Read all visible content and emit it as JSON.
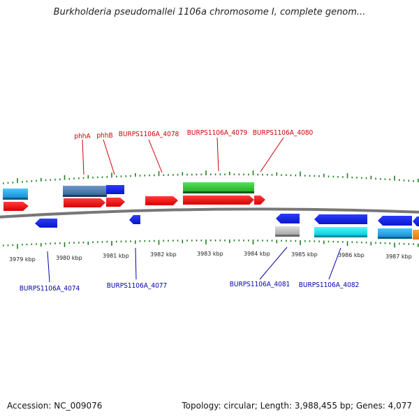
{
  "title": "Burkholderia pseudomallei 1106a chromosome I, complete genom...",
  "footer": {
    "accession": "Accession: NC_009076",
    "summary": "Topology: circular; Length: 3,988,455 bp; Genes: 4,077"
  },
  "colors": {
    "top_labels": "#cc0000",
    "bottom_labels": "#0000aa",
    "ticks": "#1f7f1f",
    "backbone": "#777777"
  },
  "tick_labels": [
    "3979 kbp",
    "3980 kbp",
    "3981 kbp",
    "3982 kbp",
    "3983 kbp",
    "3984 kbp",
    "3985 kbp",
    "3986 kbp",
    "3987 kbp"
  ],
  "top_gene_labels": [
    "phhA",
    "phhB",
    "BURPS1106A_4078",
    "BURPS1106A_4079",
    "BURPS1106A_4080"
  ],
  "bottom_gene_labels": [
    "BURPS1106A_4074",
    "BURPS1106A_4077",
    "BURPS1106A_4081",
    "BURPS1106A_4082"
  ]
}
